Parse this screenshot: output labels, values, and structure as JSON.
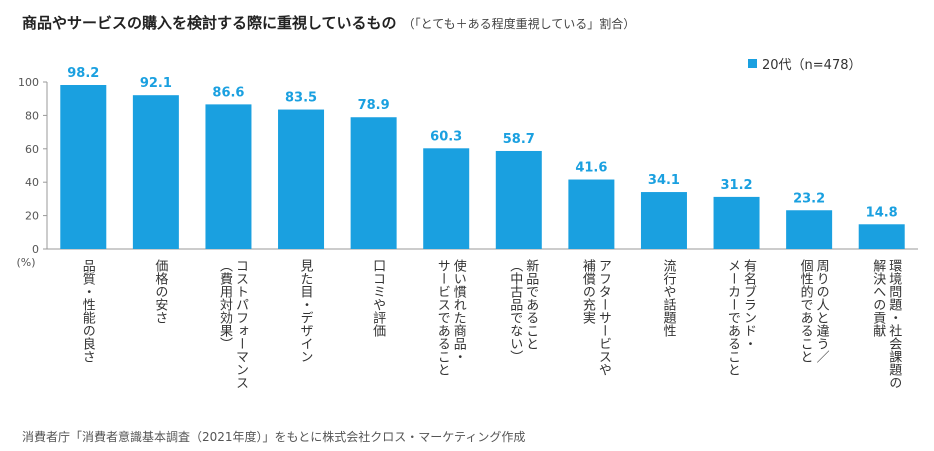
{
  "chart_data": {
    "type": "bar",
    "title": "商品やサービスの購入を検討する際に重視しているもの",
    "subtitle": "（「とても＋ある程度重視している」割合）",
    "legend": "20代（n=478）",
    "ylabel": "(%)",
    "ylim": [
      0,
      100
    ],
    "yticks": [
      "0",
      "20",
      "40",
      "60",
      "80",
      "100"
    ],
    "categories": [
      [
        "品質・性能の良さ"
      ],
      [
        "価格の安さ"
      ],
      [
        "コストパフォーマンス",
        "（費用対効果）"
      ],
      [
        "見た目・デザイン"
      ],
      [
        "口コミや評価"
      ],
      [
        "使い慣れた商品・",
        "サービスであること"
      ],
      [
        "新品であること",
        "（中古品でない）"
      ],
      [
        "アフターサービスや",
        "補償の充実"
      ],
      [
        "流行や話題性"
      ],
      [
        "有名ブランド・",
        "メーカーであること"
      ],
      [
        "周りの人と違う／",
        "個性的であること"
      ],
      [
        "環境問題・社会課題の",
        "解決への貢献"
      ]
    ],
    "values": [
      98.2,
      92.1,
      86.6,
      83.5,
      78.9,
      60.3,
      58.7,
      41.6,
      34.1,
      31.2,
      23.2,
      14.8
    ],
    "value_labels": [
      "98.2",
      "92.1",
      "86.6",
      "83.5",
      "78.9",
      "60.3",
      "58.7",
      "41.6",
      "34.1",
      "31.2",
      "23.2",
      "14.8"
    ],
    "bar_color": "#1aa0e0",
    "label_color": "#1aa0e0"
  },
  "source": "消費者庁「消費者意識基本調査（2021年度）」をもとに株式会社クロス・マーケティング作成"
}
